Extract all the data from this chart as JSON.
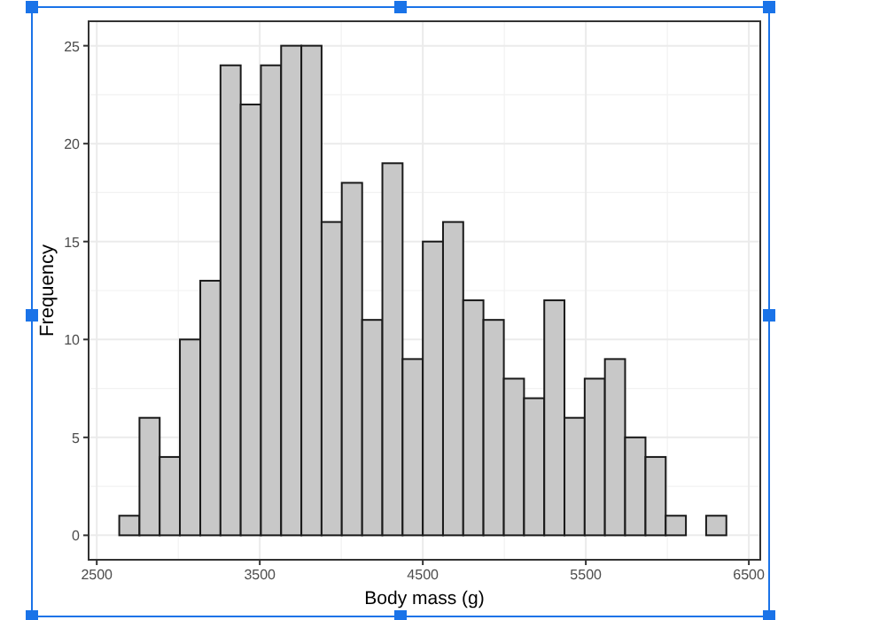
{
  "chart_data": {
    "type": "histogram",
    "xlabel": "Body mass (g)",
    "ylabel": "Frequency",
    "bins": [
      2638,
      2762,
      2886,
      3010,
      3135,
      3259,
      3383,
      3507,
      3631,
      3755,
      3879,
      4003,
      4128,
      4252,
      4376,
      4500,
      4624,
      4748,
      4872,
      4997,
      5121,
      5245,
      5369,
      5493,
      5617,
      5741,
      5866,
      5990,
      6114,
      6238,
      6362
    ],
    "values": [
      1,
      6,
      4,
      10,
      13,
      24,
      22,
      24,
      25,
      25,
      16,
      18,
      11,
      19,
      9,
      15,
      16,
      12,
      11,
      8,
      7,
      12,
      6,
      8,
      9,
      5,
      4,
      1,
      0,
      1
    ],
    "color": "#c8c8c8",
    "xlim": [
      2450,
      6570
    ],
    "xticks": [
      2500,
      3500,
      4500,
      5500,
      6500
    ],
    "ylim": [
      -1.25,
      26.25
    ],
    "yticks": [
      0,
      5,
      10,
      15,
      20,
      25
    ],
    "grid": true
  }
}
